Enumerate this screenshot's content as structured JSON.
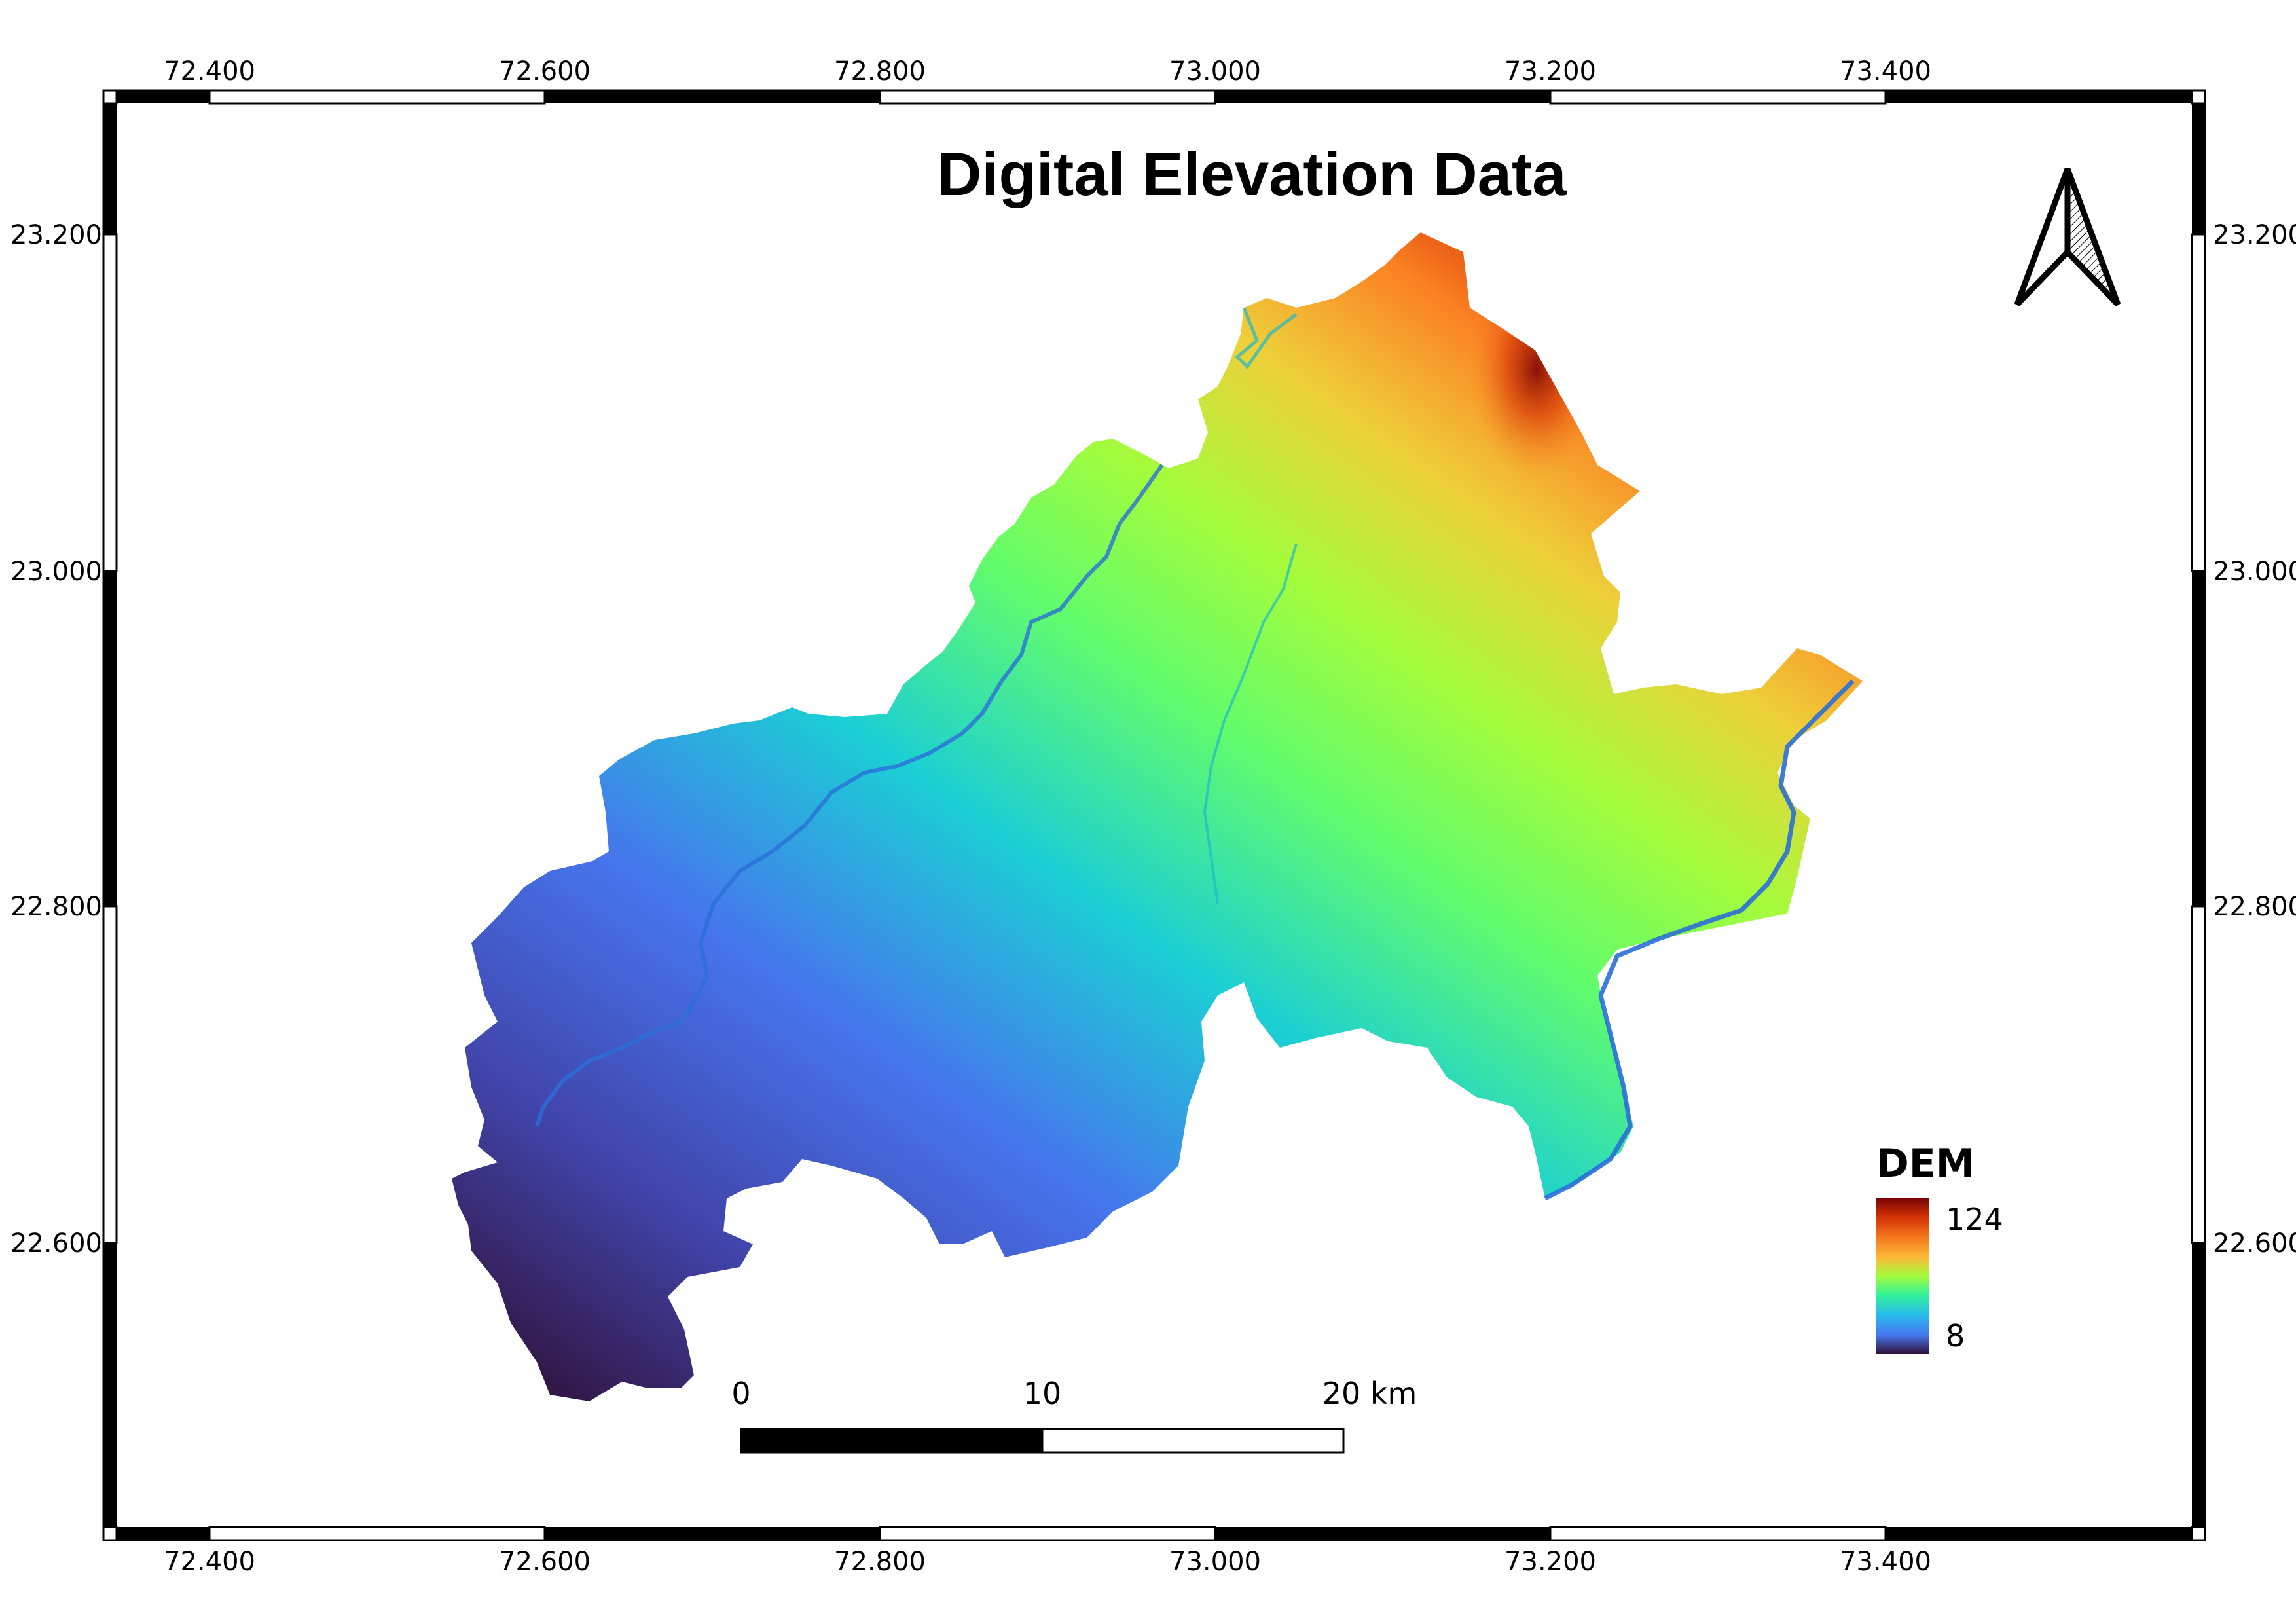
{
  "title": "Digital Elevation Data",
  "longitude_ticks": [
    "72.400",
    "72.600",
    "72.800",
    "73.000",
    "73.200",
    "73.400"
  ],
  "latitude_ticks": [
    "23.200",
    "23.000",
    "22.800",
    "22.600"
  ],
  "legend": {
    "title": "DEM",
    "max_label": "124",
    "min_label": "8",
    "ramp_colors": [
      "#7a0403",
      "#d23105",
      "#f6781e",
      "#fbb938",
      "#a4fc3c",
      "#32f298",
      "#28bceb",
      "#4777ef",
      "#30123b"
    ]
  },
  "scale_bar": {
    "labels": [
      "0",
      "10",
      "20 km"
    ]
  },
  "north_arrow": {
    "icon": "north-arrow-icon"
  },
  "colors": {
    "frame": "#000000",
    "background": "#ffffff"
  }
}
